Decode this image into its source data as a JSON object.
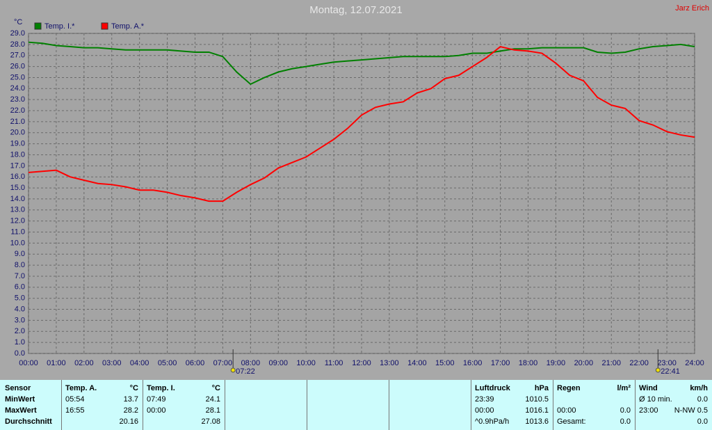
{
  "chart_data": {
    "type": "line",
    "title": "Montag, 12.07.2021",
    "author": "Jarz Erich",
    "y_label": "°C",
    "x": [
      0,
      0.5,
      1,
      1.5,
      2,
      2.5,
      3,
      3.5,
      4,
      4.5,
      5,
      5.5,
      6,
      6.5,
      7,
      7.5,
      8,
      8.5,
      9,
      9.5,
      10,
      10.5,
      11,
      11.5,
      12,
      12.5,
      13,
      13.5,
      14,
      14.5,
      15,
      15.5,
      16,
      16.5,
      17,
      17.5,
      18,
      18.5,
      19,
      19.5,
      20,
      20.5,
      21,
      21.5,
      22,
      22.5,
      23,
      23.5,
      24
    ],
    "series": [
      {
        "name": "Temp. I.*",
        "color": "#008000",
        "values": [
          28.2,
          28.1,
          27.9,
          27.8,
          27.7,
          27.7,
          27.6,
          27.5,
          27.5,
          27.5,
          27.5,
          27.4,
          27.3,
          27.3,
          26.9,
          25.5,
          24.4,
          25.0,
          25.5,
          25.8,
          26.0,
          26.2,
          26.4,
          26.5,
          26.6,
          26.7,
          26.8,
          26.9,
          26.9,
          26.9,
          26.9,
          27.0,
          27.2,
          27.2,
          27.4,
          27.6,
          27.6,
          27.7,
          27.7,
          27.7,
          27.7,
          27.3,
          27.2,
          27.3,
          27.6,
          27.8,
          27.9,
          28.0,
          27.8
        ]
      },
      {
        "name": "Temp. A.*",
        "color": "#ff0000",
        "values": [
          16.4,
          16.5,
          16.6,
          16.0,
          15.7,
          15.4,
          15.3,
          15.1,
          14.8,
          14.8,
          14.6,
          14.3,
          14.1,
          13.8,
          13.8,
          14.6,
          15.3,
          15.9,
          16.8,
          17.3,
          17.8,
          18.6,
          19.4,
          20.4,
          21.6,
          22.3,
          22.6,
          22.8,
          23.6,
          24.0,
          24.9,
          25.2,
          26.0,
          26.8,
          27.8,
          27.5,
          27.4,
          27.2,
          26.3,
          25.2,
          24.7,
          23.2,
          22.5,
          22.2,
          21.1,
          20.7,
          20.1,
          19.8,
          19.6
        ]
      }
    ],
    "xlim": [
      0,
      24
    ],
    "xticks": [
      {
        "value": 0,
        "label": "00:00"
      },
      {
        "value": 1,
        "label": "01:00"
      },
      {
        "value": 2,
        "label": "02:00"
      },
      {
        "value": 3,
        "label": "03:00"
      },
      {
        "value": 4,
        "label": "04:00"
      },
      {
        "value": 5,
        "label": "05:00"
      },
      {
        "value": 6,
        "label": "06:00"
      },
      {
        "value": 7,
        "label": "07:00"
      },
      {
        "value": 8,
        "label": "08:00"
      },
      {
        "value": 9,
        "label": "09:00"
      },
      {
        "value": 10,
        "label": "10:00"
      },
      {
        "value": 11,
        "label": "11:00"
      },
      {
        "value": 12,
        "label": "12:00"
      },
      {
        "value": 13,
        "label": "13:00"
      },
      {
        "value": 14,
        "label": "14:00"
      },
      {
        "value": 15,
        "label": "15:00"
      },
      {
        "value": 16,
        "label": "16:00"
      },
      {
        "value": 17,
        "label": "17:00"
      },
      {
        "value": 18,
        "label": "18:00"
      },
      {
        "value": 19,
        "label": "19:00"
      },
      {
        "value": 20,
        "label": "20:00"
      },
      {
        "value": 21,
        "label": "21:00"
      },
      {
        "value": 22,
        "label": "22:00"
      },
      {
        "value": 23,
        "label": "23:00"
      },
      {
        "value": 24,
        "label": "24:00"
      }
    ],
    "ylim": [
      0,
      29
    ],
    "yticks": [
      {
        "value": 0,
        "label": "0.0"
      },
      {
        "value": 1,
        "label": "1.0"
      },
      {
        "value": 2,
        "label": "2.0"
      },
      {
        "value": 3,
        "label": "3.0"
      },
      {
        "value": 4,
        "label": "4.0"
      },
      {
        "value": 5,
        "label": "5.0"
      },
      {
        "value": 6,
        "label": "6.0"
      },
      {
        "value": 7,
        "label": "7.0"
      },
      {
        "value": 8,
        "label": "8.0"
      },
      {
        "value": 9,
        "label": "9.0"
      },
      {
        "value": 10,
        "label": "10.0"
      },
      {
        "value": 11,
        "label": "11.0"
      },
      {
        "value": 12,
        "label": "12.0"
      },
      {
        "value": 13,
        "label": "13.0"
      },
      {
        "value": 14,
        "label": "14.0"
      },
      {
        "value": 15,
        "label": "15.0"
      },
      {
        "value": 16,
        "label": "16.0"
      },
      {
        "value": 17,
        "label": "17.0"
      },
      {
        "value": 18,
        "label": "18.0"
      },
      {
        "value": 19,
        "label": "19.0"
      },
      {
        "value": 20,
        "label": "20.0"
      },
      {
        "value": 21,
        "label": "21.0"
      },
      {
        "value": 22,
        "label": "22.0"
      },
      {
        "value": 23,
        "label": "23.0"
      },
      {
        "value": 24,
        "label": "24.0"
      },
      {
        "value": 25,
        "label": "25.0"
      },
      {
        "value": 26,
        "label": "26.0"
      },
      {
        "value": 27,
        "label": "27.0"
      },
      {
        "value": 28,
        "label": "28.0"
      },
      {
        "value": 29,
        "label": "29.0"
      }
    ],
    "grid": true,
    "annotations": [
      {
        "text": "07:22",
        "x": 7.37
      },
      {
        "text": "22:41",
        "x": 22.68
      }
    ]
  },
  "table": {
    "sensor": {
      "title": "Sensor",
      "rows": [
        "MinWert",
        "MaxWert",
        "Durchschnitt"
      ]
    },
    "panels": [
      {
        "title": "Temp. A.",
        "unit": "°C",
        "rows": [
          {
            "time": "05:54",
            "value": "13.7"
          },
          {
            "time": "16:55",
            "value": "28.2"
          },
          {
            "value": "20.16"
          }
        ]
      },
      {
        "title": "Temp. I.",
        "unit": "°C",
        "rows": [
          {
            "time": "07:49",
            "value": "24.1"
          },
          {
            "time": "00:00",
            "value": "28.1"
          },
          {
            "value": "27.08"
          }
        ]
      },
      {
        "title": "Luftdruck",
        "unit": "hPa",
        "rows": [
          {
            "time": "23:39",
            "value": "1010.5"
          },
          {
            "time": "00:00",
            "value": "1016.1"
          },
          {
            "time": "^0.9hPa/h",
            "value": "1013.6"
          }
        ]
      },
      {
        "title": "Regen",
        "unit": "l/m²",
        "rows": [
          null,
          {
            "time": "00:00",
            "value": "0.0"
          },
          {
            "time": "Gesamt:",
            "value": "0.0"
          }
        ]
      },
      {
        "title": "Wind",
        "unit": "km/h",
        "rows": [
          {
            "time": "Ø 10 min.",
            "value": "0.0"
          },
          {
            "time": "23:00",
            "value": "N-NW 0.5"
          },
          {
            "value": "0.0"
          }
        ]
      }
    ]
  }
}
